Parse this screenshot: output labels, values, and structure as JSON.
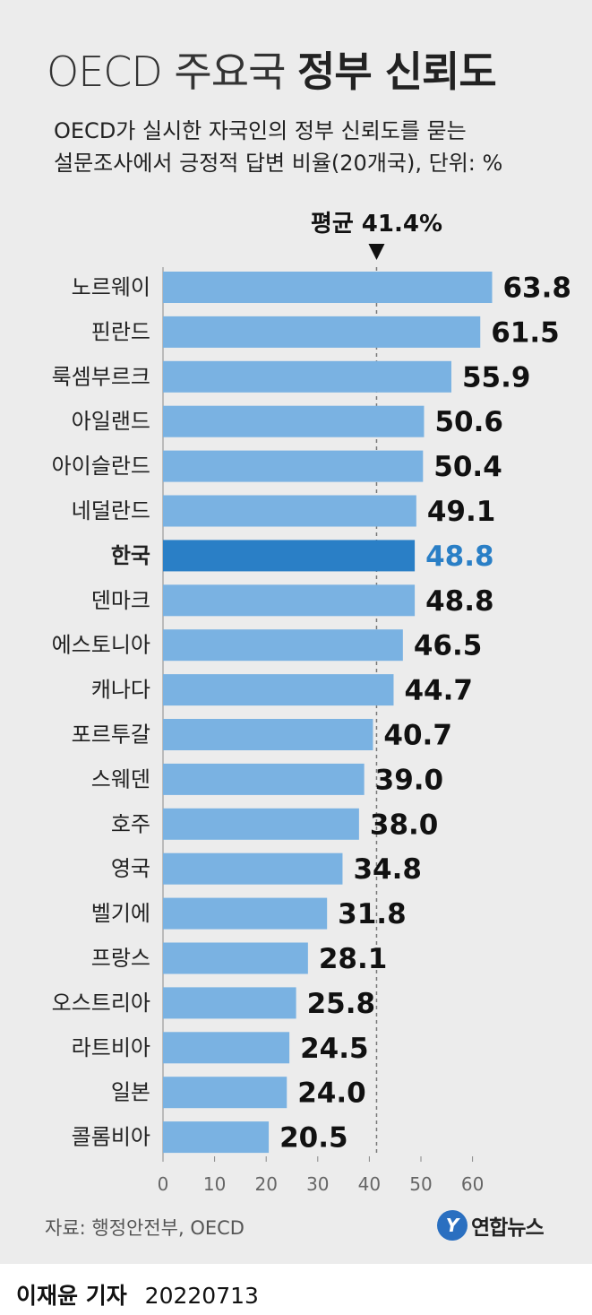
{
  "title_light": "OECD 주요국",
  "title_bold": "정부 신뢰도",
  "subtitle_line1": "OECD가 실시한 자국인의 정부 신뢰도를 묻는",
  "subtitle_line2": "설문조사에서 긍정적 답변 비율(20개국), 단위: %",
  "source": "자료: 행정안전부, OECD",
  "logo": "연합뉴스",
  "logo_mark": "Y",
  "byline_name": "이재윤 기자",
  "byline_date": "20220713",
  "colors": {
    "bar": "#7ab2e2",
    "highlight_bar": "#2a7fc6",
    "highlight_value": "#2a7fc6",
    "panel": "#ececec"
  },
  "chart_data": {
    "type": "bar",
    "orientation": "horizontal",
    "categories": [
      "노르웨이",
      "핀란드",
      "룩셈부르크",
      "아일랜드",
      "아이슬란드",
      "네덜란드",
      "한국",
      "덴마크",
      "에스토니아",
      "캐나다",
      "포르투갈",
      "스웨덴",
      "호주",
      "영국",
      "벨기에",
      "프랑스",
      "오스트리아",
      "라트비아",
      "일본",
      "콜롬비아"
    ],
    "values": [
      63.8,
      61.5,
      55.9,
      50.6,
      50.4,
      49.1,
      48.8,
      48.8,
      46.5,
      44.7,
      40.7,
      39.0,
      38.0,
      34.8,
      31.8,
      28.1,
      25.8,
      24.5,
      24.0,
      20.5
    ],
    "value_labels": [
      "63.8",
      "61.5",
      "55.9",
      "50.6",
      "50.4",
      "49.1",
      "48.8",
      "48.8",
      "46.5",
      "44.7",
      "40.7",
      "39.0",
      "38.0",
      "34.8",
      "31.8",
      "28.1",
      "25.8",
      "24.5",
      "24.0",
      "20.5"
    ],
    "highlight": "한국",
    "xlim": [
      0,
      64
    ],
    "xticks": [
      "0",
      "10",
      "20",
      "30",
      "40",
      "50",
      "60"
    ],
    "average": 41.4,
    "average_label": "평균 41.4%"
  }
}
